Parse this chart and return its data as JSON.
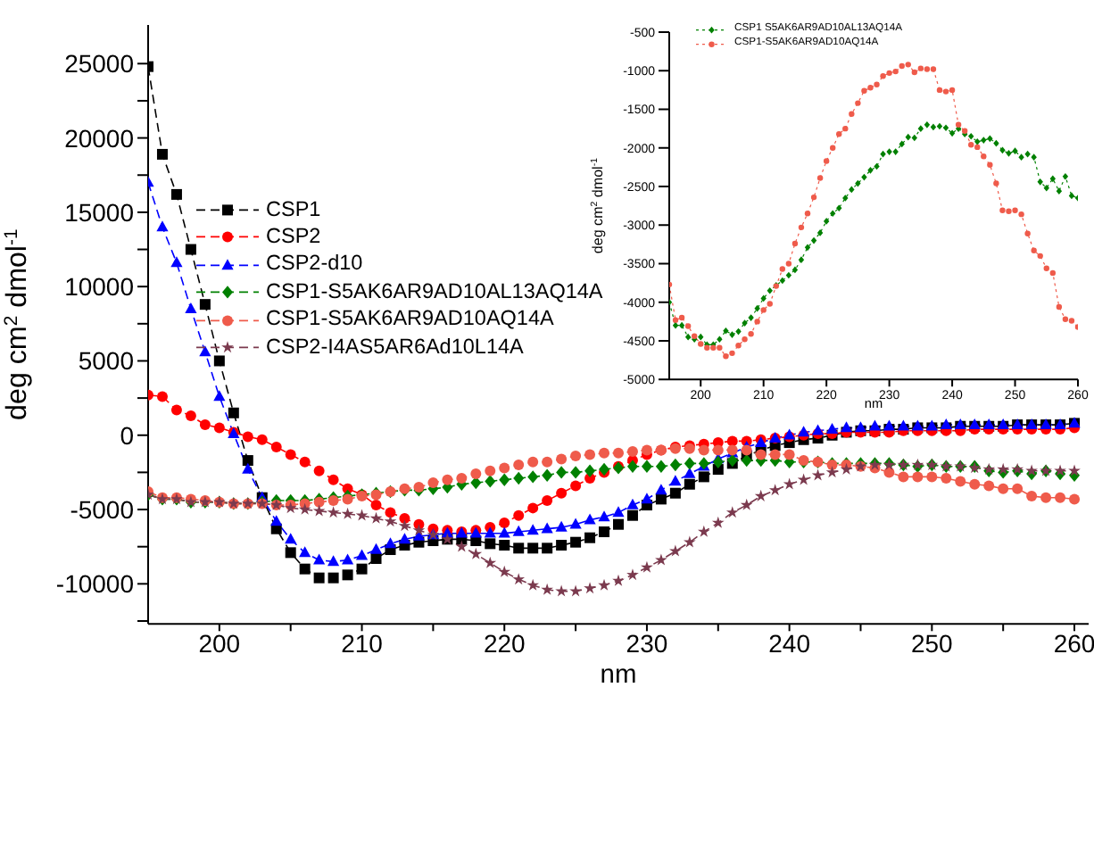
{
  "chart_data": [
    {
      "type": "line",
      "xlabel": "nm",
      "ylabel": "deg cm$^{2}$ dmol$^{-1}$",
      "xlim": [
        195,
        261
      ],
      "ylim": [
        -12700,
        27600
      ],
      "xticks": [
        200,
        {
          "value": 205,
          "label": null
        },
        210,
        {
          "value": 215,
          "label": null
        },
        220,
        {
          "value": 225,
          "label": null
        },
        230,
        {
          "value": 235,
          "label": null
        },
        240,
        {
          "value": 245,
          "label": null
        },
        250,
        {
          "value": 255,
          "label": null
        },
        260
      ],
      "yticks": [
        {
          "value": -12500,
          "label": null
        },
        -10000,
        {
          "value": -7500,
          "label": null
        },
        -5000,
        {
          "value": -2500,
          "label": null
        },
        0,
        {
          "value": 2500,
          "label": null
        },
        5000,
        {
          "value": 7500,
          "label": null
        },
        10000,
        {
          "value": 12500,
          "label": null
        },
        15000,
        {
          "value": 17500,
          "label": null
        },
        20000,
        {
          "value": 22500,
          "label": null
        },
        25000
      ],
      "legend": "center left",
      "line_style": "dashed",
      "grid": false,
      "x": [
        195,
        196,
        197,
        198,
        199,
        200,
        201,
        202,
        203,
        204,
        205,
        206,
        207,
        208,
        209,
        210,
        211,
        212,
        213,
        214,
        215,
        216,
        217,
        218,
        219,
        220,
        221,
        222,
        223,
        224,
        225,
        226,
        227,
        228,
        229,
        230,
        231,
        232,
        233,
        234,
        235,
        236,
        237,
        238,
        239,
        240,
        241,
        242,
        243,
        244,
        245,
        246,
        247,
        248,
        249,
        250,
        251,
        252,
        253,
        254,
        255,
        256,
        257,
        258,
        259,
        260
      ],
      "series": [
        {
          "name": "CSP1",
          "color": "#000000",
          "marker": "square",
          "values": [
            24800,
            18900,
            16200,
            12500,
            8800,
            5000,
            1500,
            -1700,
            -4200,
            -6300,
            -7900,
            -9000,
            -9600,
            -9600,
            -9400,
            -9000,
            -8300,
            -7700,
            -7400,
            -7200,
            -7100,
            -7000,
            -7000,
            -7100,
            -7300,
            -7400,
            -7600,
            -7600,
            -7600,
            -7400,
            -7200,
            -6900,
            -6500,
            -6000,
            -5400,
            -4700,
            -4300,
            -3900,
            -3300,
            -2800,
            -2300,
            -1900,
            -1400,
            -1000,
            -700,
            -500,
            -300,
            -200,
            0,
            200,
            300,
            300,
            400,
            400,
            500,
            500,
            500,
            600,
            600,
            600,
            600,
            700,
            700,
            700,
            700,
            800
          ]
        },
        {
          "name": "CSP2",
          "color": "#ff0000",
          "marker": "circle",
          "values": [
            2700,
            2600,
            1700,
            1300,
            700,
            500,
            200,
            -100,
            -300,
            -800,
            -1300,
            -1800,
            -2400,
            -3000,
            -3600,
            -4000,
            -4700,
            -5200,
            -5600,
            -6000,
            -6300,
            -6400,
            -6500,
            -6400,
            -6200,
            -5900,
            -5400,
            -4900,
            -4400,
            -3900,
            -3400,
            -2900,
            -2500,
            -2100,
            -1700,
            -1300,
            -1000,
            -800,
            -700,
            -600,
            -500,
            -400,
            -400,
            -300,
            -200,
            -100,
            0,
            100,
            100,
            200,
            200,
            200,
            200,
            300,
            300,
            300,
            300,
            300,
            400,
            400,
            400,
            400,
            400,
            400,
            400,
            500
          ]
        },
        {
          "name": "CSP2-d10",
          "color": "#0000ff",
          "marker": "triangle",
          "values": [
            17000,
            14000,
            11600,
            8500,
            5600,
            2600,
            100,
            -2300,
            -4200,
            -5800,
            -7000,
            -7900,
            -8400,
            -8500,
            -8400,
            -8100,
            -7700,
            -7300,
            -7000,
            -6800,
            -6700,
            -6600,
            -6600,
            -6600,
            -6600,
            -6600,
            -6500,
            -6400,
            -6300,
            -6200,
            -6000,
            -5700,
            -5500,
            -5200,
            -4700,
            -4300,
            -3700,
            -3100,
            -2600,
            -2100,
            -1600,
            -1200,
            -800,
            -500,
            -200,
            0,
            200,
            300,
            400,
            500,
            500,
            600,
            600,
            600,
            600,
            600,
            700,
            700,
            700,
            700,
            700,
            700,
            700,
            700,
            700,
            800
          ]
        },
        {
          "name": "CSP1-S5AK6AR9AD10AL13AQ14A",
          "color": "#008000",
          "marker": "diamond",
          "values": [
            -4000,
            -4300,
            -4300,
            -4500,
            -4500,
            -4500,
            -4600,
            -4600,
            -4500,
            -4400,
            -4400,
            -4400,
            -4300,
            -4200,
            -4100,
            -4000,
            -3900,
            -3800,
            -3700,
            -3700,
            -3600,
            -3500,
            -3300,
            -3200,
            -3100,
            -3000,
            -2900,
            -2800,
            -2700,
            -2500,
            -2500,
            -2400,
            -2300,
            -2200,
            -2100,
            -2100,
            -2100,
            -2000,
            -1900,
            -1900,
            -1800,
            -1700,
            -1700,
            -1700,
            -1700,
            -1800,
            -1800,
            -1800,
            -1900,
            -1900,
            -1900,
            -1900,
            -1900,
            -2000,
            -2100,
            -2000,
            -2100,
            -2100,
            -2100,
            -2400,
            -2500,
            -2400,
            -2600,
            -2400,
            -2600,
            -2700
          ]
        },
        {
          "name": "CSP1-S5AK6AR9AD10AQ14A",
          "color": "#ef5b4b",
          "marker": "circle",
          "values": [
            -3800,
            -4200,
            -4200,
            -4300,
            -4400,
            -4500,
            -4600,
            -4600,
            -4600,
            -4700,
            -4700,
            -4600,
            -4500,
            -4400,
            -4300,
            -4100,
            -4000,
            -3800,
            -3600,
            -3500,
            -3200,
            -3000,
            -2900,
            -2600,
            -2400,
            -2200,
            -2000,
            -1800,
            -1800,
            -1600,
            -1400,
            -1300,
            -1200,
            -1200,
            -1100,
            -1000,
            -1000,
            -900,
            -900,
            -1000,
            -1000,
            -1000,
            -1000,
            -1300,
            -1300,
            -1300,
            -1700,
            -1800,
            -2000,
            -2000,
            -2100,
            -2200,
            -2500,
            -2800,
            -2800,
            -2800,
            -2900,
            -3100,
            -3300,
            -3400,
            -3600,
            -3600,
            -4100,
            -4200,
            -4200,
            -4300
          ]
        },
        {
          "name": "CSP2-I4AS5AR6Ad10L14A",
          "color": "#7b3a4e",
          "marker": "star",
          "values": [
            -4000,
            -4300,
            -4300,
            -4500,
            -4500,
            -4500,
            -4600,
            -4600,
            -4600,
            -4700,
            -4900,
            -5000,
            -5100,
            -5200,
            -5300,
            -5400,
            -5600,
            -5800,
            -6100,
            -6400,
            -6700,
            -7000,
            -7500,
            -8000,
            -8600,
            -9200,
            -9700,
            -10100,
            -10400,
            -10500,
            -10500,
            -10300,
            -10100,
            -9800,
            -9400,
            -8900,
            -8400,
            -7800,
            -7200,
            -6500,
            -5900,
            -5200,
            -4700,
            -4100,
            -3700,
            -3300,
            -3000,
            -2700,
            -2500,
            -2300,
            -2100,
            -2000,
            -2000,
            -2000,
            -2000,
            -2000,
            -2100,
            -2100,
            -2200,
            -2300,
            -2300,
            -2300,
            -2400,
            -2400,
            -2400,
            -2400
          ]
        }
      ]
    },
    {
      "type": "line",
      "xlabel": "nm",
      "ylabel": "deg cm$^{2}$ dmol$^{-1}$",
      "xlim": [
        195,
        260
      ],
      "ylim": [
        -5000,
        -500
      ],
      "xticks": [
        200,
        210,
        220,
        230,
        240,
        250,
        260
      ],
      "yticks": [
        -5000,
        -4500,
        -4000,
        -3500,
        -3000,
        -2500,
        -2000,
        -1500,
        -1000,
        -500
      ],
      "legend": "top left",
      "line_style": "dotted",
      "grid": false,
      "x": [
        195,
        196,
        197,
        198,
        199,
        200,
        201,
        202,
        203,
        204,
        205,
        206,
        207,
        208,
        209,
        210,
        211,
        212,
        213,
        214,
        215,
        216,
        217,
        218,
        219,
        220,
        221,
        222,
        223,
        224,
        225,
        226,
        227,
        228,
        229,
        230,
        231,
        232,
        233,
        234,
        235,
        236,
        237,
        238,
        239,
        240,
        241,
        242,
        243,
        244,
        245,
        246,
        247,
        248,
        249,
        250,
        251,
        252,
        253,
        254,
        255,
        256,
        257,
        258,
        259,
        260
      ],
      "series": [
        {
          "name": "CSP1 S5AK6AR9AD10AL13AQ14A",
          "color": "#008000",
          "marker": "diamond",
          "values": [
            -4000,
            -4300,
            -4300,
            -4450,
            -4480,
            -4450,
            -4550,
            -4550,
            -4480,
            -4370,
            -4420,
            -4380,
            -4270,
            -4200,
            -4080,
            -3950,
            -3850,
            -3780,
            -3720,
            -3650,
            -3580,
            -3450,
            -3290,
            -3200,
            -3100,
            -2950,
            -2850,
            -2780,
            -2650,
            -2540,
            -2460,
            -2380,
            -2290,
            -2240,
            -2080,
            -2050,
            -2050,
            -1950,
            -1860,
            -1870,
            -1750,
            -1700,
            -1730,
            -1720,
            -1740,
            -1810,
            -1750,
            -1820,
            -1850,
            -1920,
            -1900,
            -1880,
            -1940,
            -2030,
            -2070,
            -2040,
            -2120,
            -2080,
            -2120,
            -2440,
            -2520,
            -2400,
            -2560,
            -2370,
            -2620,
            -2650
          ]
        },
        {
          "name": "CSP1-S5AK6AR9AD10AQ14A",
          "color": "#ef5b4b",
          "marker": "circle",
          "values": [
            -3770,
            -4230,
            -4200,
            -4310,
            -4440,
            -4540,
            -4590,
            -4590,
            -4590,
            -4700,
            -4660,
            -4560,
            -4480,
            -4410,
            -4250,
            -4100,
            -4020,
            -3790,
            -3570,
            -3500,
            -3240,
            -3030,
            -2850,
            -2640,
            -2390,
            -2170,
            -2000,
            -1820,
            -1750,
            -1560,
            -1420,
            -1260,
            -1220,
            -1180,
            -1070,
            -1030,
            -1010,
            -940,
            -920,
            -1020,
            -970,
            -980,
            -980,
            -1250,
            -1270,
            -1250,
            -1700,
            -1780,
            -1960,
            -1990,
            -2110,
            -2220,
            -2460,
            -2810,
            -2820,
            -2810,
            -2860,
            -3110,
            -3330,
            -3400,
            -3560,
            -3620,
            -4060,
            -4220,
            -4240,
            -4320
          ]
        }
      ]
    }
  ]
}
